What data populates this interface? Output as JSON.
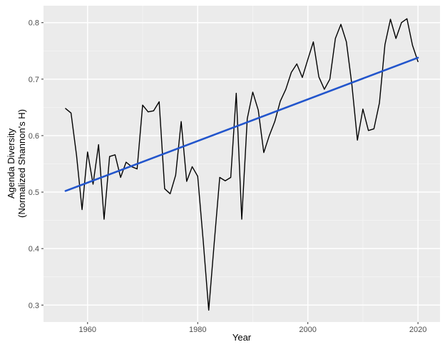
{
  "chart_data": {
    "type": "line",
    "xlabel": "Year",
    "ylabel": [
      "Agenda Diversity",
      "(Normalized Shannon's H)"
    ],
    "xlim": [
      1952,
      2024
    ],
    "ylim": [
      0.27,
      0.83
    ],
    "x_ticks": [
      1960,
      1980,
      2000,
      2020
    ],
    "y_ticks": [
      0.3,
      0.4,
      0.5,
      0.6,
      0.7,
      0.8
    ],
    "x_tick_labels": [
      "1960",
      "1980",
      "2000",
      "2020"
    ],
    "y_tick_labels": [
      "0.3",
      "0.4",
      "0.5",
      "0.6",
      "0.7",
      "0.8"
    ],
    "grid": true,
    "background": "#ebebeb",
    "series": [
      {
        "kind": "line",
        "color": "#000000",
        "x": [
          1956,
          1957,
          1958,
          1959,
          1960,
          1961,
          1962,
          1963,
          1964,
          1965,
          1966,
          1967,
          1968,
          1969,
          1970,
          1971,
          1972,
          1973,
          1974,
          1975,
          1976,
          1977,
          1978,
          1979,
          1980,
          1981,
          1982,
          1983,
          1984,
          1985,
          1986,
          1987,
          1988,
          1989,
          1990,
          1991,
          1992,
          1993,
          1994,
          1995,
          1996,
          1997,
          1998,
          1999,
          2000,
          2001,
          2002,
          2003,
          2004,
          2005,
          2006,
          2007,
          2008,
          2009,
          2010,
          2011,
          2012,
          2013,
          2014,
          2015,
          2016,
          2017,
          2018,
          2019,
          2020
        ],
        "y": [
          0.648,
          0.64,
          0.565,
          0.469,
          0.571,
          0.514,
          0.584,
          0.452,
          0.563,
          0.566,
          0.526,
          0.553,
          0.545,
          0.541,
          0.654,
          0.642,
          0.644,
          0.66,
          0.506,
          0.497,
          0.53,
          0.625,
          0.519,
          0.545,
          0.528,
          0.414,
          0.291,
          0.41,
          0.526,
          0.52,
          0.526,
          0.675,
          0.452,
          0.63,
          0.677,
          0.645,
          0.57,
          0.6,
          0.625,
          0.661,
          0.682,
          0.712,
          0.727,
          0.703,
          0.735,
          0.766,
          0.704,
          0.682,
          0.7,
          0.772,
          0.797,
          0.766,
          0.69,
          0.592,
          0.647,
          0.609,
          0.612,
          0.658,
          0.761,
          0.806,
          0.772,
          0.8,
          0.807,
          0.76,
          0.731
        ]
      },
      {
        "kind": "trend",
        "color": "#2255cc",
        "x": [
          1956,
          2020
        ],
        "y": [
          0.502,
          0.738
        ]
      }
    ]
  }
}
